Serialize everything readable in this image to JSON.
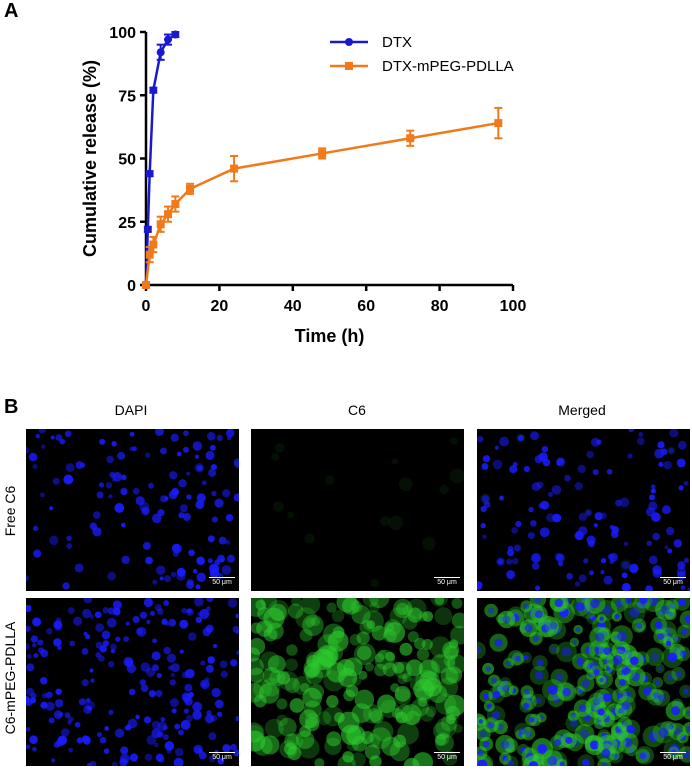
{
  "panel_a": {
    "label": "A"
  },
  "panel_b": {
    "label": "B",
    "columns": [
      "DAPI",
      "C6",
      "Merged"
    ],
    "rows": [
      "Free C6",
      "C6-mPEG-PDLLA"
    ],
    "scale_bar_text": "50 μm",
    "colors": {
      "nuclei": "#1a1cff",
      "c6": "#2ecc2e",
      "background": "#000000"
    }
  },
  "chart_data": {
    "type": "line",
    "xlabel": "Time (h)",
    "ylabel": "Cumulative release (%)",
    "xlim": [
      0,
      100
    ],
    "ylim": [
      0,
      100
    ],
    "xticks": [
      0,
      20,
      40,
      60,
      80,
      100
    ],
    "yticks": [
      0,
      25,
      50,
      75,
      100
    ],
    "legend_position": "top-right",
    "grid": false,
    "series": [
      {
        "name": "DTX",
        "color": "#1a1acc",
        "marker": "circle",
        "x": [
          0,
          0.5,
          1,
          2,
          4,
          6,
          8
        ],
        "y": [
          0,
          22,
          44,
          77,
          92,
          97,
          99
        ],
        "error": [
          0,
          1,
          1,
          1,
          3,
          2,
          1
        ]
      },
      {
        "name": "DTX-mPEG-PDLLA",
        "color": "#f07a1a",
        "marker": "square",
        "x": [
          0,
          1,
          2,
          4,
          6,
          8,
          12,
          24,
          48,
          72,
          96
        ],
        "y": [
          0,
          12,
          16,
          24,
          28,
          32,
          38,
          46,
          52,
          58,
          64
        ],
        "error": [
          0,
          3,
          3,
          3,
          3,
          3,
          2,
          5,
          2,
          3,
          6
        ]
      }
    ]
  }
}
